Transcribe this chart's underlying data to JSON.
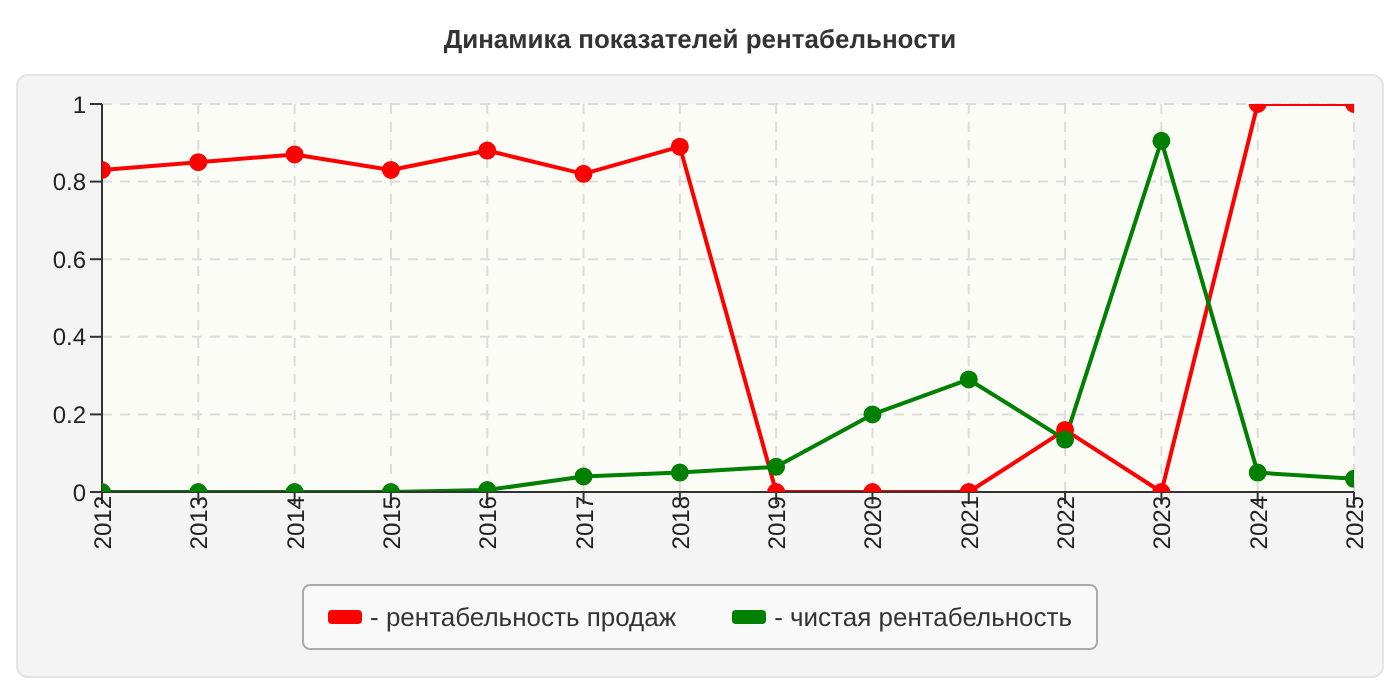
{
  "chart_data": {
    "type": "line",
    "title": "Динамика показателей рентабельности",
    "categories": [
      "2012",
      "2013",
      "2014",
      "2015",
      "2016",
      "2017",
      "2018",
      "2019",
      "2020",
      "2021",
      "2022",
      "2023",
      "2024",
      "2025"
    ],
    "series": [
      {
        "name": "- рентабельность продаж",
        "color": "#ff0000",
        "values": [
          0.83,
          0.85,
          0.87,
          0.83,
          0.88,
          0.82,
          0.89,
          0,
          0,
          0,
          0.16,
          0,
          1,
          1
        ]
      },
      {
        "name": "- чистая рентабельность",
        "color": "#008000",
        "values": [
          0,
          0,
          0,
          0,
          0.005,
          0.04,
          0.05,
          0.065,
          0.2,
          0.29,
          0.135,
          0.905,
          0.05,
          0.034
        ]
      }
    ],
    "ylim": [
      0,
      1
    ],
    "yticks": [
      0,
      0.2,
      0.4,
      0.6,
      0.8,
      1
    ],
    "grid": true,
    "legend": "bottom",
    "marker": "circle",
    "line_style": "solid"
  }
}
